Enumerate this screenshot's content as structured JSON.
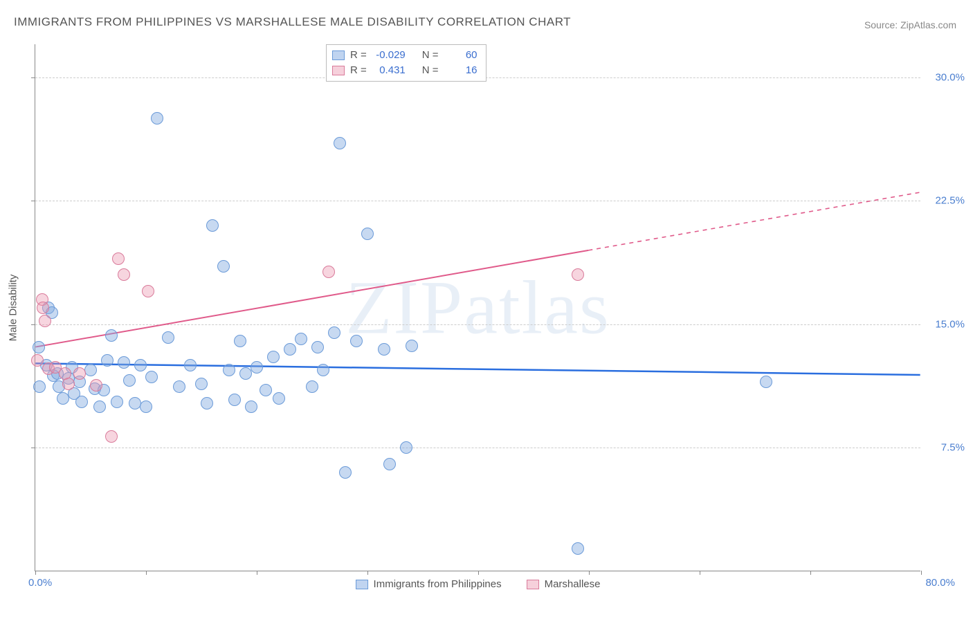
{
  "title": "IMMIGRANTS FROM PHILIPPINES VS MARSHALLESE MALE DISABILITY CORRELATION CHART",
  "source": "Source: ZipAtlas.com",
  "watermark": "ZIPatlas",
  "y_axis_label": "Male Disability",
  "chart": {
    "type": "scatter",
    "xlim": [
      0,
      80
    ],
    "ylim": [
      0,
      32
    ],
    "x_ticks": [
      0,
      10,
      20,
      30,
      40,
      50,
      60,
      70,
      80
    ],
    "y_gridlines": [
      7.5,
      15.0,
      22.5,
      30.0
    ],
    "y_tick_labels": [
      "7.5%",
      "15.0%",
      "22.5%",
      "30.0%"
    ],
    "x_min_label": "0.0%",
    "x_max_label": "80.0%",
    "background_color": "#ffffff",
    "grid_color": "#cccccc",
    "axis_color": "#888888",
    "tick_label_color": "#4a7ecf"
  },
  "series": [
    {
      "name": "Immigrants from Philippines",
      "color_fill": "rgba(130,170,225,0.45)",
      "color_stroke": "#6a9ad8",
      "point_radius": 9,
      "R": "-0.029",
      "N": "60",
      "regression": {
        "x1": 0,
        "y1": 12.6,
        "x2": 80,
        "y2": 11.9,
        "stroke": "#2a6edf",
        "width": 2.5,
        "solid_to_x": 80
      },
      "points": [
        [
          0.3,
          13.6
        ],
        [
          0.4,
          11.2
        ],
        [
          1.0,
          12.5
        ],
        [
          1.2,
          16.0
        ],
        [
          1.5,
          15.7
        ],
        [
          1.6,
          11.9
        ],
        [
          2.0,
          12.0
        ],
        [
          2.1,
          11.2
        ],
        [
          2.5,
          10.5
        ],
        [
          3.0,
          11.7
        ],
        [
          3.3,
          12.4
        ],
        [
          3.5,
          10.8
        ],
        [
          4.0,
          11.5
        ],
        [
          4.2,
          10.3
        ],
        [
          5.0,
          12.2
        ],
        [
          5.4,
          11.1
        ],
        [
          5.8,
          10.0
        ],
        [
          6.2,
          11.0
        ],
        [
          6.5,
          12.8
        ],
        [
          6.9,
          14.3
        ],
        [
          7.4,
          10.3
        ],
        [
          8.0,
          12.7
        ],
        [
          8.5,
          11.6
        ],
        [
          9.0,
          10.2
        ],
        [
          9.5,
          12.5
        ],
        [
          10.0,
          10.0
        ],
        [
          10.5,
          11.8
        ],
        [
          11.0,
          27.5
        ],
        [
          12.0,
          14.2
        ],
        [
          13.0,
          11.2
        ],
        [
          14.0,
          12.5
        ],
        [
          15.0,
          11.4
        ],
        [
          15.5,
          10.2
        ],
        [
          16.0,
          21.0
        ],
        [
          17.0,
          18.5
        ],
        [
          17.5,
          12.2
        ],
        [
          18.0,
          10.4
        ],
        [
          18.5,
          14.0
        ],
        [
          19.0,
          12.0
        ],
        [
          19.5,
          10.0
        ],
        [
          20.0,
          12.4
        ],
        [
          20.8,
          11.0
        ],
        [
          21.5,
          13.0
        ],
        [
          22.0,
          10.5
        ],
        [
          23.0,
          13.5
        ],
        [
          24.0,
          14.1
        ],
        [
          25.0,
          11.2
        ],
        [
          25.5,
          13.6
        ],
        [
          26.0,
          12.2
        ],
        [
          27.0,
          14.5
        ],
        [
          27.5,
          26.0
        ],
        [
          28.0,
          6.0
        ],
        [
          29.0,
          14.0
        ],
        [
          30.0,
          20.5
        ],
        [
          31.5,
          13.5
        ],
        [
          32.0,
          6.5
        ],
        [
          33.5,
          7.5
        ],
        [
          34.0,
          13.7
        ],
        [
          49.0,
          1.4
        ],
        [
          66.0,
          11.5
        ]
      ]
    },
    {
      "name": "Marshallese",
      "color_fill": "rgba(235,150,175,0.4)",
      "color_stroke": "#d97a9a",
      "point_radius": 9,
      "R": "0.431",
      "N": "16",
      "regression": {
        "x1": 0,
        "y1": 13.6,
        "x2": 80,
        "y2": 23.0,
        "stroke": "#e05a8a",
        "width": 2,
        "solid_to_x": 50
      },
      "points": [
        [
          0.2,
          12.8
        ],
        [
          0.6,
          16.5
        ],
        [
          0.7,
          16.0
        ],
        [
          0.9,
          15.2
        ],
        [
          1.2,
          12.3
        ],
        [
          1.8,
          12.4
        ],
        [
          2.7,
          12.0
        ],
        [
          3.0,
          11.4
        ],
        [
          4.0,
          12.0
        ],
        [
          5.5,
          11.3
        ],
        [
          6.9,
          8.2
        ],
        [
          7.5,
          19.0
        ],
        [
          8.0,
          18.0
        ],
        [
          10.2,
          17.0
        ],
        [
          26.5,
          18.2
        ],
        [
          49.0,
          18.0
        ]
      ]
    }
  ],
  "legend_top": {
    "rows": [
      {
        "swatch": "blue",
        "r_label": "R =",
        "r_val": "-0.029",
        "n_label": "N =",
        "n_val": "60"
      },
      {
        "swatch": "pink",
        "r_label": "R =",
        "r_val": "0.431",
        "n_label": "N =",
        "n_val": "16"
      }
    ]
  },
  "legend_bottom": [
    {
      "swatch": "blue",
      "label": "Immigrants from Philippines"
    },
    {
      "swatch": "pink",
      "label": "Marshallese"
    }
  ]
}
